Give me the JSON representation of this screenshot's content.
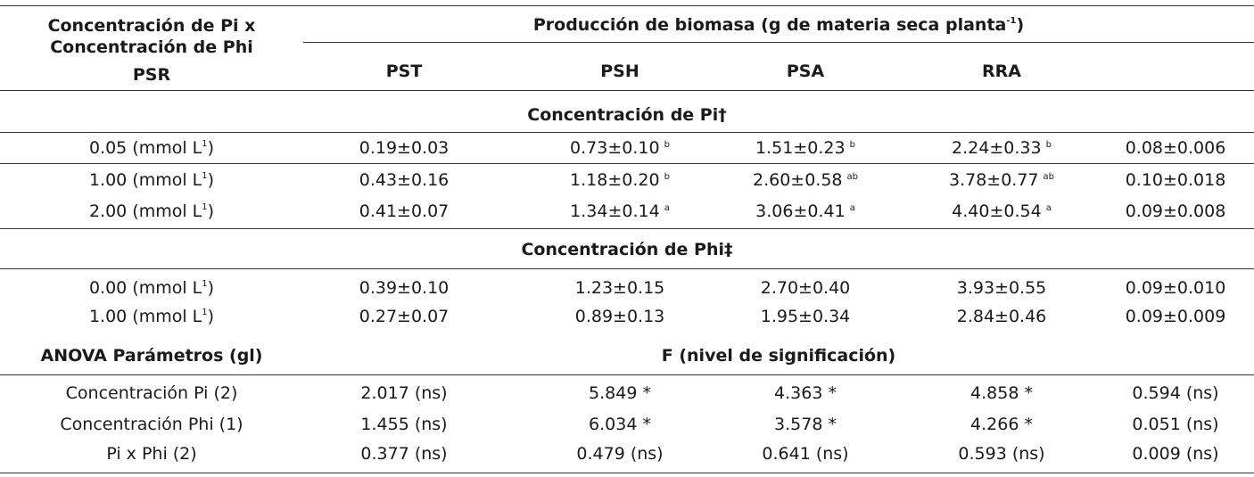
{
  "header": {
    "row_label_line1": "Concentración de Pi x",
    "row_label_line2": "Concentración de Phi",
    "row_label_line3": "PSR",
    "group_title": "Producción de biomasa (g de materia seca planta",
    "group_title_sup": "-1",
    "group_title_close": ")",
    "columns": [
      "PST",
      "PSH",
      "PSA",
      "RRA"
    ]
  },
  "section_pi": {
    "title": "Concentración de Pi†",
    "rows": [
      {
        "label": "0.05 (mmol L",
        "label_sup": "1",
        "label_close": ")",
        "cells": [
          [
            "0.19±0.03",
            ""
          ],
          [
            "0.73±0.10",
            "b"
          ],
          [
            "1.51±0.23",
            "b"
          ],
          [
            "2.24±0.33",
            "b"
          ],
          [
            "0.08±0.006",
            ""
          ]
        ]
      },
      {
        "label": "1.00 (mmol L",
        "label_sup": "1",
        "label_close": ")",
        "cells": [
          [
            "0.43±0.16",
            ""
          ],
          [
            "1.18±0.20",
            "b"
          ],
          [
            "2.60±0.58",
            "ab"
          ],
          [
            "3.78±0.77",
            "ab"
          ],
          [
            "0.10±0.018",
            ""
          ]
        ]
      },
      {
        "label": "2.00 (mmol L",
        "label_sup": "1",
        "label_close": ")",
        "cells": [
          [
            "0.41±0.07",
            ""
          ],
          [
            "1.34±0.14",
            "a"
          ],
          [
            "3.06±0.41",
            "a"
          ],
          [
            "4.40±0.54",
            "a"
          ],
          [
            "0.09±0.008",
            ""
          ]
        ]
      }
    ]
  },
  "section_phi": {
    "title": "Concentración de Phi‡",
    "rows": [
      {
        "label": "0.00 (mmol L",
        "label_sup": "1",
        "label_close": ")",
        "cells": [
          [
            "0.39±0.10",
            ""
          ],
          [
            "1.23±0.15",
            ""
          ],
          [
            "2.70±0.40",
            ""
          ],
          [
            "3.93±0.55",
            ""
          ],
          [
            "0.09±0.010",
            ""
          ]
        ]
      },
      {
        "label": "1.00 (mmol L",
        "label_sup": "1",
        "label_close": ")",
        "cells": [
          [
            "0.27±0.07",
            ""
          ],
          [
            "0.89±0.13",
            ""
          ],
          [
            "1.95±0.34",
            ""
          ],
          [
            "2.84±0.46",
            ""
          ],
          [
            "0.09±0.009",
            ""
          ]
        ]
      }
    ]
  },
  "anova": {
    "label": "ANOVA Parámetros (gl)",
    "title": "F (nivel de significación)",
    "rows": [
      {
        "label": "Concentración Pi (2)",
        "cells": [
          "2.017 (ns)",
          "5.849 *",
          "4.363 *",
          "4.858 *",
          "0.594 (ns)"
        ]
      },
      {
        "label": "Concentración Phi (1)",
        "cells": [
          "1.455 (ns)",
          "6.034 *",
          "3.578 *",
          "4.266 *",
          "0.051 (ns)"
        ]
      },
      {
        "label": "Pi x Phi (2)",
        "cells": [
          "0.377 (ns)",
          "0.479 (ns)",
          "0.641 (ns)",
          "0.593 (ns)",
          "0.009 (ns)"
        ]
      }
    ]
  }
}
